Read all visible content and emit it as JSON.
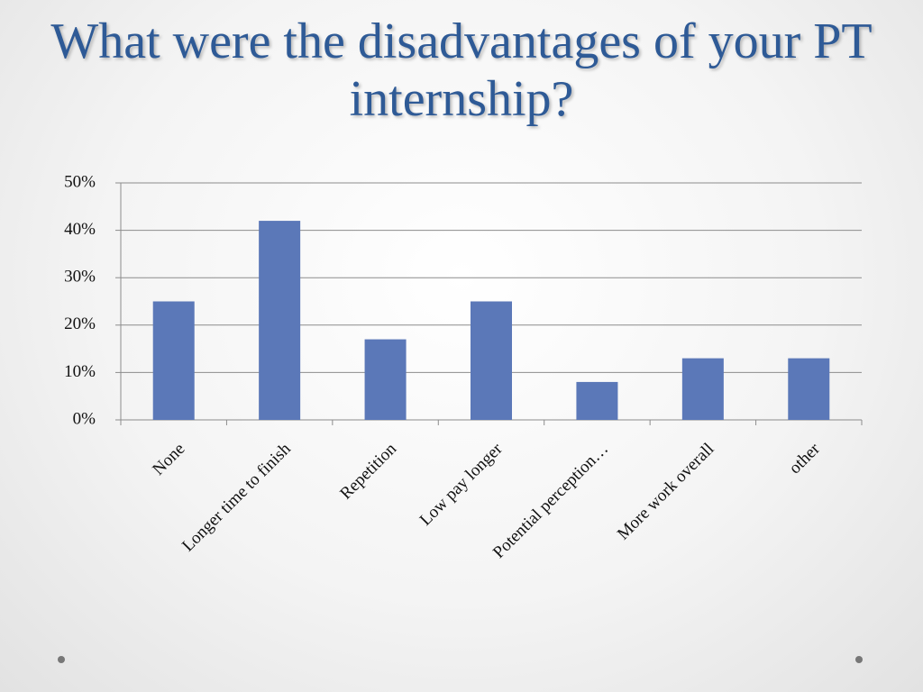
{
  "chart_data": {
    "type": "bar",
    "title": "What were the disadvantages of your PT internship?",
    "categories": [
      "None",
      "Longer time to finish",
      "Repetition",
      "Low pay longer",
      "Potential perception…",
      "More work overall",
      "other"
    ],
    "values": [
      25,
      42,
      17,
      25,
      8,
      13,
      13
    ],
    "color": "#5b78b8",
    "ylim": [
      0,
      50
    ],
    "yticks": [
      {
        "value": 0,
        "label": "0%"
      },
      {
        "value": 10,
        "label": "10%"
      },
      {
        "value": 20,
        "label": "20%"
      },
      {
        "value": 30,
        "label": "30%"
      },
      {
        "value": 40,
        "label": "40%"
      },
      {
        "value": 50,
        "label": "50%"
      }
    ],
    "grid": true
  }
}
